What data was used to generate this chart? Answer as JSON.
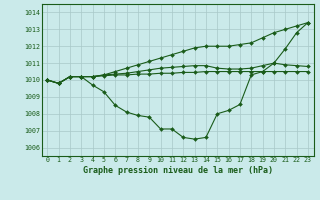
{
  "title": "Graphe pression niveau de la mer (hPa)",
  "bg_color": "#caeaea",
  "grid_color": "#a8c8c8",
  "line_color": "#1a5c1a",
  "marker_color": "#1a5c1a",
  "xlim": [
    -0.5,
    23.5
  ],
  "ylim": [
    1005.5,
    1014.5
  ],
  "xticks": [
    0,
    1,
    2,
    3,
    4,
    5,
    6,
    7,
    8,
    9,
    10,
    11,
    12,
    13,
    14,
    15,
    16,
    17,
    18,
    19,
    20,
    21,
    22,
    23
  ],
  "yticks": [
    1006,
    1007,
    1008,
    1009,
    1010,
    1011,
    1012,
    1013,
    1014
  ],
  "series": [
    [
      1010.0,
      1009.8,
      1010.2,
      1010.2,
      1010.2,
      1010.25,
      1010.3,
      1010.3,
      1010.35,
      1010.35,
      1010.4,
      1010.4,
      1010.45,
      1010.45,
      1010.5,
      1010.5,
      1010.5,
      1010.5,
      1010.5,
      1010.5,
      1010.5,
      1010.5,
      1010.5,
      1010.5
    ],
    [
      1010.0,
      1009.8,
      1010.2,
      1010.2,
      1010.2,
      1010.3,
      1010.35,
      1010.4,
      1010.5,
      1010.6,
      1010.7,
      1010.75,
      1010.8,
      1010.85,
      1010.85,
      1010.7,
      1010.65,
      1010.65,
      1010.7,
      1010.85,
      1011.0,
      1010.9,
      1010.85,
      1010.8
    ],
    [
      1010.0,
      1009.8,
      1010.2,
      1010.2,
      1010.2,
      1010.3,
      1010.5,
      1010.7,
      1010.9,
      1011.1,
      1011.3,
      1011.5,
      1011.7,
      1011.9,
      1012.0,
      1012.0,
      1012.0,
      1012.1,
      1012.2,
      1012.5,
      1012.8,
      1013.0,
      1013.2,
      1013.4
    ],
    [
      1010.0,
      1009.8,
      1010.2,
      1010.2,
      1009.7,
      1009.3,
      1008.5,
      1008.1,
      1007.9,
      1007.8,
      1007.1,
      1007.1,
      1006.6,
      1006.5,
      1006.6,
      1008.0,
      1008.2,
      1008.55,
      1010.3,
      1010.5,
      1011.0,
      1011.85,
      1012.8,
      1013.4
    ]
  ]
}
